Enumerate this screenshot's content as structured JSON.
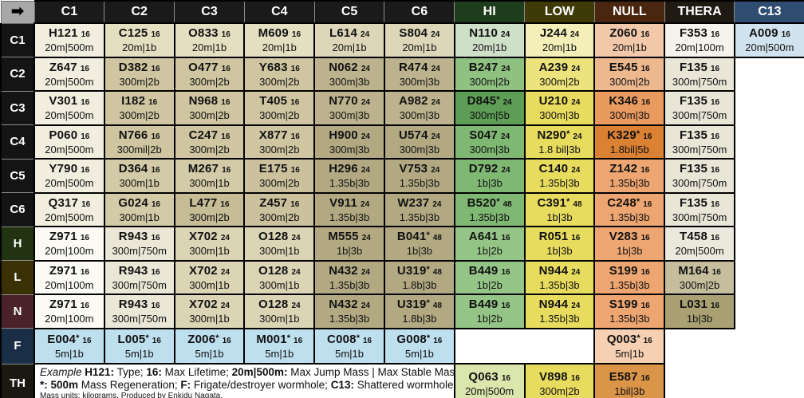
{
  "chart_data": {
    "type": "table",
    "corner_icon": "arrow-right",
    "columns": [
      {
        "label": "C1",
        "bg": "#1a1a1a"
      },
      {
        "label": "C2",
        "bg": "#1a1a1a"
      },
      {
        "label": "C3",
        "bg": "#1a1a1a"
      },
      {
        "label": "C4",
        "bg": "#1a1a1a"
      },
      {
        "label": "C5",
        "bg": "#1a1a1a"
      },
      {
        "label": "C6",
        "bg": "#1a1a1a"
      },
      {
        "label": "HI",
        "bg": "#1d3d1c"
      },
      {
        "label": "LOW",
        "bg": "#3f3b09"
      },
      {
        "label": "NULL",
        "bg": "#48260f"
      },
      {
        "label": "THERA",
        "bg": "#1f1a13"
      },
      {
        "label": "C13",
        "bg": "#2e4d70"
      }
    ],
    "rows": [
      {
        "label": "C1",
        "label_bg": "#141414",
        "height": 42.5,
        "cells": [
          {
            "code": "H121",
            "life": "16",
            "mass": "20m|500m",
            "bg": "#f1eedf"
          },
          {
            "code": "C125",
            "life": "16",
            "mass": "20m|1b",
            "bg": "#e5dfc2"
          },
          {
            "code": "O833",
            "life": "16",
            "mass": "20m|1b",
            "bg": "#e5dfc2"
          },
          {
            "code": "M609",
            "life": "16",
            "mass": "20m|1b",
            "bg": "#e5dfc2"
          },
          {
            "code": "L614",
            "life": "24",
            "mass": "20m|1b",
            "bg": "#ddd6b9"
          },
          {
            "code": "S804",
            "life": "24",
            "mass": "20m|1b",
            "bg": "#ddd6b9"
          },
          {
            "code": "N110",
            "life": "24",
            "mass": "20m|1b",
            "bg": "#cfe0c8"
          },
          {
            "code": "J244",
            "life": "24",
            "mass": "20m|1b",
            "bg": "#f4efb9"
          },
          {
            "code": "Z060",
            "life": "16",
            "mass": "20m|1b",
            "bg": "#f2c8aa"
          },
          {
            "code": "F353",
            "life": "16",
            "mass": "20m|100m",
            "bg": "#f5f3ec"
          },
          {
            "code": "A009",
            "life": "16",
            "mass": "20m|500m",
            "bg": "#d2e3f0"
          }
        ]
      },
      {
        "label": "C2",
        "label_bg": "#141414",
        "height": 42.5,
        "cells": [
          {
            "code": "Z647",
            "life": "16",
            "mass": "20m|500m",
            "bg": "#f1eedf"
          },
          {
            "code": "D382",
            "life": "16",
            "mass": "300m|2b",
            "bg": "#cfc5a1"
          },
          {
            "code": "O477",
            "life": "16",
            "mass": "300m|2b",
            "bg": "#cfc5a1"
          },
          {
            "code": "Y683",
            "life": "16",
            "mass": "300m|2b",
            "bg": "#cfc5a1"
          },
          {
            "code": "N062",
            "life": "24",
            "mass": "300m|3b",
            "bg": "#bcb28d"
          },
          {
            "code": "R474",
            "life": "24",
            "mass": "300m|3b",
            "bg": "#bcb28d"
          },
          {
            "code": "B247",
            "life": "24",
            "mass": "300m|2b",
            "bg": "#8fc180"
          },
          {
            "code": "A239",
            "life": "24",
            "mass": "300m|2b",
            "bg": "#ede37c"
          },
          {
            "code": "E545",
            "life": "16",
            "mass": "300m|2b",
            "bg": "#eeb88f"
          },
          {
            "code": "F135",
            "life": "16",
            "mass": "300m|750m",
            "bg": "#e9e6d8"
          },
          {
            "empty": true
          }
        ]
      },
      {
        "label": "C3",
        "label_bg": "#141414",
        "height": 42.5,
        "cells": [
          {
            "code": "V301",
            "life": "16",
            "mass": "20m|500m",
            "bg": "#f1eedf"
          },
          {
            "code": "I182",
            "life": "16",
            "mass": "300m|2b",
            "bg": "#cfc5a1"
          },
          {
            "code": "N968",
            "life": "16",
            "mass": "300m|2b",
            "bg": "#cfc5a1"
          },
          {
            "code": "T405",
            "life": "16",
            "mass": "300m|2b",
            "bg": "#cfc5a1"
          },
          {
            "code": "N770",
            "life": "24",
            "mass": "300m|3b",
            "bg": "#bcb28d"
          },
          {
            "code": "A982",
            "life": "24",
            "mass": "300m|3b",
            "bg": "#bcb28d"
          },
          {
            "code": "D845",
            "star": true,
            "life": "24",
            "mass": "300m|5b",
            "bg": "#5d9d55"
          },
          {
            "code": "U210",
            "life": "24",
            "mass": "300m|3b",
            "bg": "#e8dc5f"
          },
          {
            "code": "K346",
            "life": "16",
            "mass": "300m|3b",
            "bg": "#e89a5f"
          },
          {
            "code": "F135",
            "life": "16",
            "mass": "300m|750m",
            "bg": "#e9e6d8"
          },
          {
            "empty": true
          }
        ]
      },
      {
        "label": "C4",
        "label_bg": "#141414",
        "height": 42.5,
        "cells": [
          {
            "code": "P060",
            "life": "16",
            "mass": "20m|500m",
            "bg": "#f1eedf"
          },
          {
            "code": "N766",
            "life": "16",
            "mass": "300mil|2b",
            "bg": "#cfc5a1"
          },
          {
            "code": "C247",
            "life": "16",
            "mass": "300m|2b",
            "bg": "#cfc5a1"
          },
          {
            "code": "X877",
            "life": "16",
            "mass": "300m|2b",
            "bg": "#cfc5a1"
          },
          {
            "code": "H900",
            "life": "24",
            "mass": "300m|3b",
            "bg": "#b2a982"
          },
          {
            "code": "U574",
            "life": "24",
            "mass": "300m|3b",
            "bg": "#b2a982"
          },
          {
            "code": "S047",
            "life": "24",
            "mass": "300m|3b",
            "bg": "#7fb873"
          },
          {
            "code": "N290",
            "star": true,
            "life": "24",
            "mass": "1.8 bil|3b",
            "bg": "#e8dc5f"
          },
          {
            "code": "K329",
            "star": true,
            "life": "16",
            "mass": "1.8bil|5b",
            "bg": "#db8134"
          },
          {
            "code": "F135",
            "life": "16",
            "mass": "300m|750m",
            "bg": "#e9e6d8"
          },
          {
            "empty": true
          }
        ]
      },
      {
        "label": "C5",
        "label_bg": "#141414",
        "height": 42.5,
        "cells": [
          {
            "code": "Y790",
            "life": "16",
            "mass": "20m|500m",
            "bg": "#f1eedf"
          },
          {
            "code": "D364",
            "life": "16",
            "mass": "300m|1b",
            "bg": "#d3caa7"
          },
          {
            "code": "M267",
            "life": "16",
            "mass": "300m|1b",
            "bg": "#d3caa7"
          },
          {
            "code": "E175",
            "life": "16",
            "mass": "300m|2b",
            "bg": "#cbc19d"
          },
          {
            "code": "H296",
            "life": "24",
            "mass": "1.35b|3b",
            "bg": "#b2a982"
          },
          {
            "code": "V753",
            "life": "24",
            "mass": "1.35b|3b",
            "bg": "#b2a982"
          },
          {
            "code": "D792",
            "life": "24",
            "mass": "1b|3b",
            "bg": "#7fb873"
          },
          {
            "code": "C140",
            "life": "24",
            "mass": "1.35b|3b",
            "bg": "#e8dc5f"
          },
          {
            "code": "Z142",
            "life": "16",
            "mass": "1.35b|3b",
            "bg": "#eda571"
          },
          {
            "code": "F135",
            "life": "16",
            "mass": "300m|750m",
            "bg": "#e9e6d8"
          },
          {
            "empty": true
          }
        ]
      },
      {
        "label": "C6",
        "label_bg": "#141414",
        "height": 42.5,
        "cells": [
          {
            "code": "Q317",
            "life": "16",
            "mass": "20m|500m",
            "bg": "#f1eedf"
          },
          {
            "code": "G024",
            "life": "16",
            "mass": "300m|1b",
            "bg": "#d3caa7"
          },
          {
            "code": "L477",
            "life": "16",
            "mass": "300m|2b",
            "bg": "#c6bc96"
          },
          {
            "code": "Z457",
            "life": "16",
            "mass": "300m|2b",
            "bg": "#cbc19d"
          },
          {
            "code": "V911",
            "life": "24",
            "mass": "1.35b|3b",
            "bg": "#b2a982"
          },
          {
            "code": "W237",
            "life": "24",
            "mass": "1.35b|3b",
            "bg": "#b2a982"
          },
          {
            "code": "B520",
            "star": true,
            "life": "48",
            "mass": "1.35b|3b",
            "bg": "#7fb873"
          },
          {
            "code": "C391",
            "star": true,
            "life": "48",
            "mass": "1b|3b",
            "bg": "#e8dc5f"
          },
          {
            "code": "C248",
            "star": true,
            "life": "16",
            "mass": "1.35b|3b",
            "bg": "#eda571"
          },
          {
            "code": "F135",
            "life": "16",
            "mass": "300m|750m",
            "bg": "#e9e6d8"
          },
          {
            "empty": true
          }
        ]
      },
      {
        "label": "H",
        "label_bg": "#223312",
        "height": 42.5,
        "cells": [
          {
            "code": "Z971",
            "life": "16",
            "mass": "20m|100m",
            "bg": "#fbfaf4"
          },
          {
            "code": "R943",
            "life": "16",
            "mass": "300m|750m",
            "bg": "#eae7d7"
          },
          {
            "code": "X702",
            "life": "24",
            "mass": "300m|1b",
            "bg": "#dbd4b5"
          },
          {
            "code": "O128",
            "life": "24",
            "mass": "300m|1b",
            "bg": "#dbd4b5"
          },
          {
            "code": "M555",
            "life": "24",
            "mass": "1b|3b",
            "bg": "#b2a982"
          },
          {
            "code": "B041",
            "star": true,
            "life": "48",
            "mass": "1b|3b",
            "bg": "#b2a982"
          },
          {
            "code": "A641",
            "life": "16",
            "mass": "1b|2b",
            "bg": "#95c586"
          },
          {
            "code": "R051",
            "life": "16",
            "mass": "1b|3b",
            "bg": "#e8dc5f"
          },
          {
            "code": "V283",
            "life": "16",
            "mass": "1b|3b",
            "bg": "#eda571"
          },
          {
            "code": "T458",
            "life": "16",
            "mass": "20m|500m",
            "bg": "#ebe9dc"
          },
          {
            "empty": true
          }
        ]
      },
      {
        "label": "L",
        "label_bg": "#3a3006",
        "height": 42.5,
        "cells": [
          {
            "code": "Z971",
            "life": "16",
            "mass": "20m|100m",
            "bg": "#fbfaf4"
          },
          {
            "code": "R943",
            "life": "16",
            "mass": "300m|750m",
            "bg": "#eae7d7"
          },
          {
            "code": "X702",
            "life": "24",
            "mass": "300m|1b",
            "bg": "#dbd4b5"
          },
          {
            "code": "O128",
            "life": "24",
            "mass": "300m|1b",
            "bg": "#dbd4b5"
          },
          {
            "code": "N432",
            "life": "24",
            "mass": "1.35b|3b",
            "bg": "#b2a982"
          },
          {
            "code": "U319",
            "star": true,
            "life": "48",
            "mass": "1.8b|3b",
            "bg": "#b2a982"
          },
          {
            "code": "B449",
            "life": "16",
            "mass": "1b|2b",
            "bg": "#95c586"
          },
          {
            "code": "N944",
            "life": "24",
            "mass": "1.35b|3b",
            "bg": "#e8dc5f"
          },
          {
            "code": "S199",
            "life": "16",
            "mass": "1.35b|3b",
            "bg": "#eda571"
          },
          {
            "code": "M164",
            "life": "16",
            "mass": "300m|2b",
            "bg": "#c6bd9d"
          },
          {
            "empty": true
          }
        ]
      },
      {
        "label": "N",
        "label_bg": "#4a2229",
        "height": 42.5,
        "cells": [
          {
            "code": "Z971",
            "life": "16",
            "mass": "20m|100m",
            "bg": "#fbfaf4"
          },
          {
            "code": "R943",
            "life": "16",
            "mass": "300m|750m",
            "bg": "#eae7d7"
          },
          {
            "code": "X702",
            "life": "24",
            "mass": "300m|1b",
            "bg": "#dbd4b5"
          },
          {
            "code": "O128",
            "life": "24",
            "mass": "300m|1b",
            "bg": "#dbd4b5"
          },
          {
            "code": "N432",
            "life": "24",
            "mass": "1.35b|3b",
            "bg": "#b2a982"
          },
          {
            "code": "U319",
            "star": true,
            "life": "48",
            "mass": "1.8b|3b",
            "bg": "#b2a982"
          },
          {
            "code": "B449",
            "life": "16",
            "mass": "1b|2b",
            "bg": "#95c586"
          },
          {
            "code": "N944",
            "life": "24",
            "mass": "1.35b|3b",
            "bg": "#e8dc5f"
          },
          {
            "code": "S199",
            "life": "16",
            "mass": "1.35b|3b",
            "bg": "#eda571"
          },
          {
            "code": "L031",
            "life": "16",
            "mass": "1b|3b",
            "bg": "#a9a173"
          },
          {
            "empty": true
          }
        ]
      },
      {
        "label": "F",
        "label_bg": "#1a2e46",
        "height": 44.5,
        "cells": [
          {
            "code": "E004",
            "star": true,
            "life": "16",
            "mass": "5m|1b",
            "bg": "#bedfee"
          },
          {
            "code": "L005",
            "star": true,
            "life": "16",
            "mass": "5m|1b",
            "bg": "#bedfee"
          },
          {
            "code": "Z006",
            "star": true,
            "life": "16",
            "mass": "5m|1b",
            "bg": "#bedfee"
          },
          {
            "code": "M001",
            "star": true,
            "life": "16",
            "mass": "5m|1b",
            "bg": "#bedfee"
          },
          {
            "code": "C008",
            "star": true,
            "life": "16",
            "mass": "5m|1b",
            "bg": "#bedfee"
          },
          {
            "code": "G008",
            "star": true,
            "life": "16",
            "mass": "5m|1b",
            "bg": "#bedfee"
          },
          {
            "empty": true
          },
          {
            "empty": true
          },
          {
            "code": "Q003",
            "star": true,
            "life": "16",
            "mass": "5m|1b",
            "bg": "#f5d0b2"
          },
          {
            "empty": true
          },
          {
            "empty": true
          }
        ]
      },
      {
        "label": "TH",
        "label_bg": "#1b1812",
        "height": 44,
        "cells": [
          {
            "note": true,
            "colspan": 6,
            "bg": "#ffffff"
          },
          {
            "code": "Q063",
            "life": "16",
            "mass": "20m|500m",
            "bg": "#dbe6ad"
          },
          {
            "code": "V898",
            "life": "16",
            "mass": "300m|2b",
            "bg": "#e8dc5f"
          },
          {
            "code": "E587",
            "life": "16",
            "mass": "1bil|3b",
            "bg": "#da9548"
          },
          {
            "empty": true
          },
          {
            "empty": true
          }
        ]
      }
    ],
    "footnote": {
      "lines": [
        [
          {
            "t": "Example ",
            "i": true
          },
          {
            "t": "H121:",
            "b": true
          },
          {
            "t": " Type; "
          },
          {
            "t": "16:",
            "b": true
          },
          {
            "t": " Max Lifetime; "
          },
          {
            "t": "20m|500m:",
            "b": true
          },
          {
            "t": " Max Jump Mass | Max Stable Mass;"
          }
        ],
        [
          {
            "t": "*: 500m",
            "b": true
          },
          {
            "t": " Mass Regeneration; "
          },
          {
            "t": "F:",
            "b": true
          },
          {
            "t": " Frigate/destroyer wormhole; "
          },
          {
            "t": "C13:",
            "b": true
          },
          {
            "t": " Shattered wormhole;"
          }
        ]
      ],
      "fine_print": "Mass units: kilograms. Produced by Enkidu Nagata."
    }
  }
}
